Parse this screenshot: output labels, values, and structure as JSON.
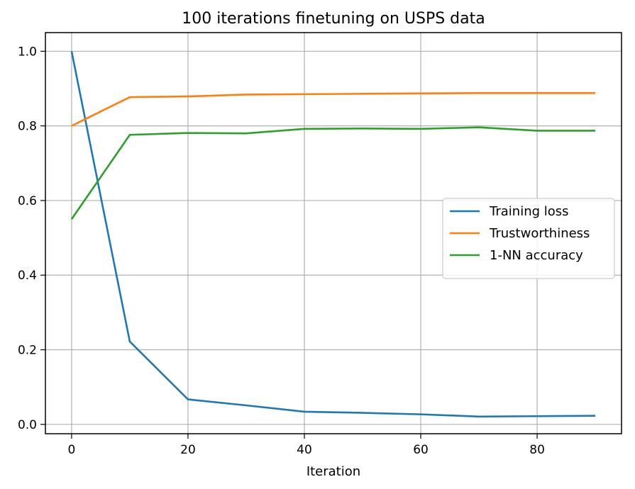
{
  "chart_data": {
    "type": "line",
    "title": "100 iterations finetuning on USPS data",
    "xlabel": "Iteration",
    "ylabel": "",
    "x": [
      0,
      10,
      20,
      30,
      40,
      50,
      60,
      70,
      80,
      90
    ],
    "xlim": [
      -4.5,
      94.5
    ],
    "ylim": [
      -0.025,
      1.05
    ],
    "xticks": [
      0,
      20,
      40,
      60,
      80
    ],
    "xtick_labels": [
      "0",
      "20",
      "40",
      "60",
      "80"
    ],
    "yticks": [
      0.0,
      0.2,
      0.4,
      0.6,
      0.8,
      1.0
    ],
    "ytick_labels": [
      "0.0",
      "0.2",
      "0.4",
      "0.6",
      "0.8",
      "1.0"
    ],
    "grid": true,
    "legend_position": "center-right",
    "series": [
      {
        "name": "Training loss",
        "color": "#1f77b4",
        "values": [
          1.0,
          0.222,
          0.067,
          0.051,
          0.034,
          0.031,
          0.027,
          0.021,
          0.022,
          0.023
        ]
      },
      {
        "name": "Trustworthiness",
        "color": "#ff7f0e",
        "values": [
          0.8,
          0.877,
          0.879,
          0.884,
          0.885,
          0.886,
          0.887,
          0.888,
          0.888,
          0.888
        ]
      },
      {
        "name": "1-NN accuracy",
        "color": "#2ca02c",
        "values": [
          0.55,
          0.776,
          0.781,
          0.78,
          0.792,
          0.793,
          0.792,
          0.796,
          0.787,
          0.787
        ]
      }
    ]
  }
}
